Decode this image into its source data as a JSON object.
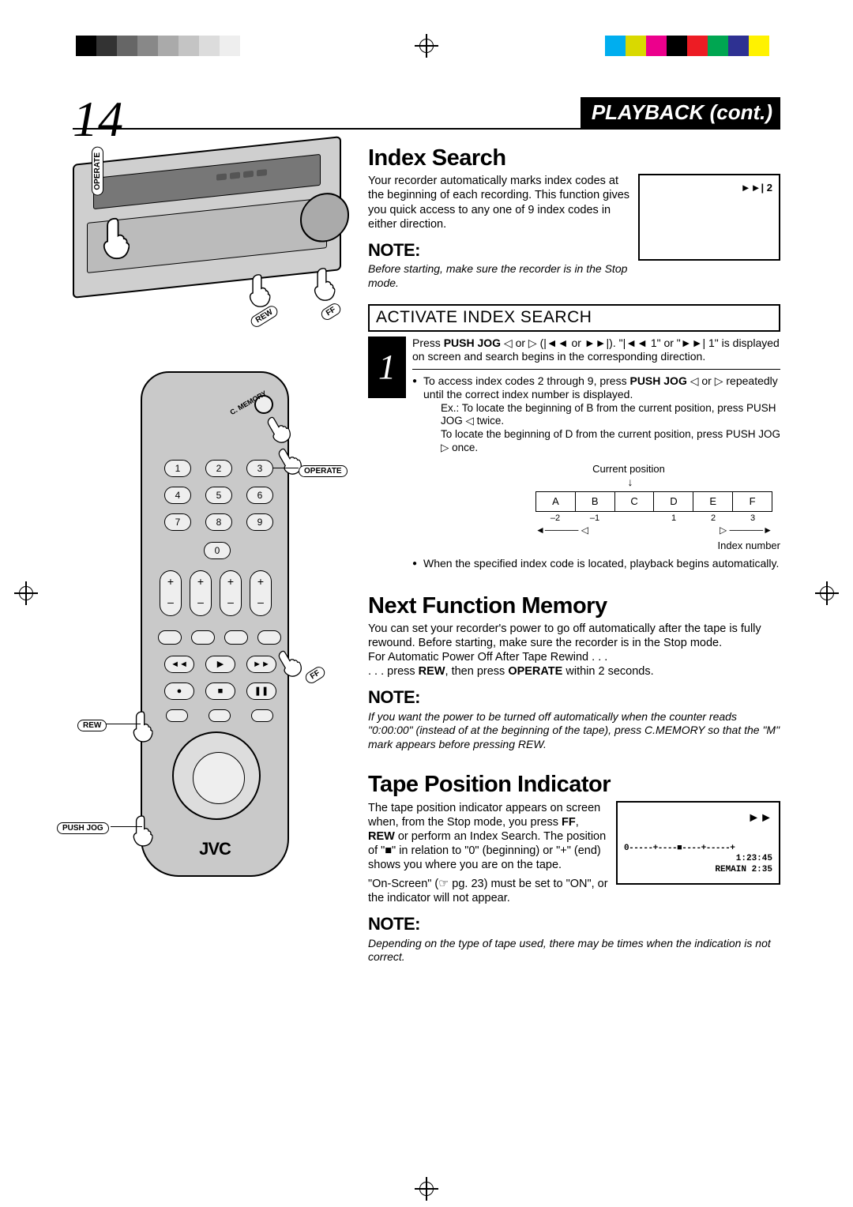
{
  "page_number": "14",
  "section_header": "PLAYBACK (cont.)",
  "vcr_labels": {
    "operate": "OPERATE",
    "rew": "REW",
    "ff": "FF"
  },
  "remote_labels": {
    "c_memory": "C. MEMORY",
    "operate": "OPERATE",
    "rew": "REW",
    "ff": "FF",
    "push_jog": "PUSH JOG",
    "brand": "JVC",
    "digits": [
      "1",
      "2",
      "3",
      "4",
      "5",
      "6",
      "7",
      "8",
      "9"
    ],
    "zero": "0",
    "play_row": [
      "◄◄",
      "▶",
      "►►"
    ],
    "stop_row": [
      "●",
      "■",
      "❚❚"
    ]
  },
  "index_search": {
    "heading": "Index Search",
    "intro": "Your recorder automatically marks index codes at the beginning of each recording. This function gives you quick access to any one of 9 index codes in either direction.",
    "osd_indicator": "►►|  2",
    "note_label": "NOTE:",
    "note_body": "Before starting, make sure the recorder is in the Stop mode.",
    "step_title": "ACTIVATE INDEX SEARCH",
    "step_num": "1",
    "step_body_1_prefix": "Press ",
    "step_body_1_bold1": "PUSH JOG",
    "step_body_1_mid": " ◁ or ▷ (|◄◄ or ►►|). \"|◄◄ 1\" or \"►►| 1\" is displayed on screen and search begins in the corresponding direction.",
    "bullet1_a": "To access index codes 2 through 9, press ",
    "bullet1_bold": "PUSH JOG",
    "bullet1_b": " ◁ or ▷ repeatedly until the correct index number is displayed.",
    "ex_line": "Ex.: To locate the beginning of B from the current position, press  PUSH JOG ◁ twice.",
    "ex_line2": "To locate the beginning of D from the current position, press PUSH JOG ▷ once.",
    "diagram": {
      "current_label": "Current position",
      "cells": [
        "A",
        "B",
        "C",
        "D",
        "E",
        "F"
      ],
      "scale": [
        "–2",
        "–1",
        "",
        "1",
        "2",
        "3"
      ],
      "left_sym": "◁",
      "right_sym": "▷",
      "index_label": "Index number"
    },
    "bullet2": "When the specified index code is located, playback begins automatically."
  },
  "next_function": {
    "heading": "Next Function Memory",
    "body1": "You can set your recorder's power to go off automatically after the tape is fully rewound. Before starting, make sure the recorder is in the Stop mode.",
    "body2": "For Automatic Power Off After Tape Rewind . . .",
    "body3_a": ". . . press ",
    "body3_bold1": "REW",
    "body3_b": ", then press ",
    "body3_bold2": "OPERATE",
    "body3_c": " within 2 seconds.",
    "note_label": "NOTE:",
    "note_body": "If you want the power to be turned off automatically when the counter reads \"0:00:00\" (instead of at the beginning of the tape), press C.MEMORY so that the \"M\" mark appears before pressing REW."
  },
  "tape_position": {
    "heading": "Tape Position Indicator",
    "body_a": "The tape position indicator appears on screen when, from the Stop mode, you press ",
    "body_bold1": "FF",
    "body_comma": ", ",
    "body_bold2": "REW",
    "body_b": " or perform an Index Search. The position of \"■\" in relation to \"0\" (beginning) or \"+\" (end) shows you where you are on the tape.",
    "body2": "\"On-Screen\" (☞ pg. 23) must be set to \"ON\", or the indicator will not appear.",
    "osd": {
      "arrow": "►►",
      "bar": "0-----+----■----+-----+",
      "time": "1:23:45",
      "remain": "REMAIN 2:35"
    },
    "note_label": "NOTE:",
    "note_body": "Depending on the type of tape used, there may be times when the indication is not correct."
  },
  "colors": {
    "grays": [
      "#000000",
      "#333333",
      "#666666",
      "#888888",
      "#aaaaaa",
      "#c4c4c4",
      "#dcdcdc",
      "#eeeeee",
      "#ffffff"
    ],
    "swatches": [
      "#00aeef",
      "#d9d900",
      "#ec008c",
      "#000000",
      "#ed1c24",
      "#00a651",
      "#2e3192",
      "#fff200"
    ]
  }
}
